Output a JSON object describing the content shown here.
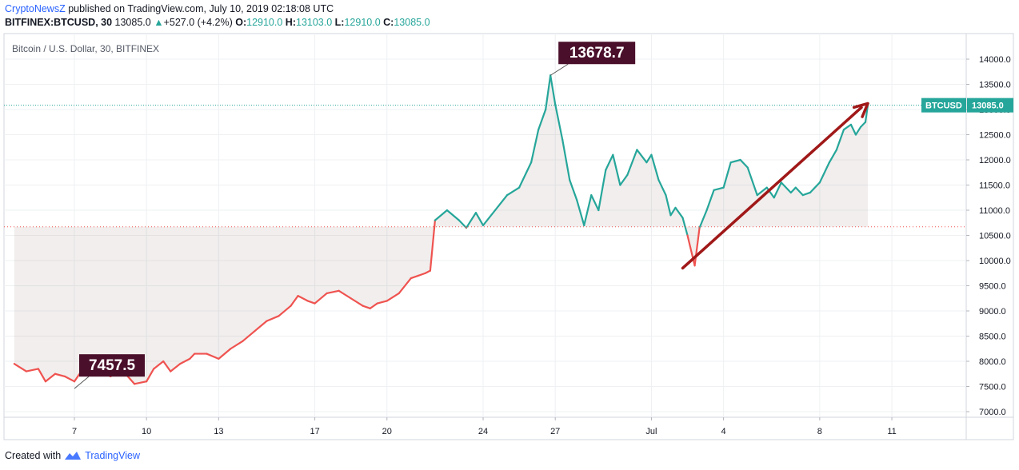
{
  "header": {
    "publisher": "CryptoNewsZ",
    "published_text": " published on TradingView.com, July 10, 2019 02:18:08 UTC",
    "symbol": "BITFINEX:BTCUSD, 30",
    "last": "13085.0",
    "change_arrow": "▲",
    "change": "+527.0 (+4.2%)",
    "o_label": "O:",
    "o_value": "12910.0",
    "h_label": "H:",
    "h_value": "13103.0",
    "l_label": "L:",
    "l_value": "12910.0",
    "c_label": "C:",
    "c_value": "13085.0"
  },
  "footer": {
    "created_with": "Created with",
    "brand": "TradingView"
  },
  "colors": {
    "up": "#26a69a",
    "down": "#ef5350",
    "annotation_bg": "#4a0f2a",
    "arrow": "#a01818",
    "grid": "#eef0f3"
  },
  "chart_data": {
    "type": "line",
    "title": "Bitcoin / U.S. Dollar, 30, BITFINEX",
    "price_tag_label": "BTCUSD",
    "price_tag_value": "13085.0",
    "ylim": [
      6850,
      14500
    ],
    "y_ticks": [
      "7000.0",
      "7500.0",
      "8000.0",
      "8500.0",
      "9000.0",
      "9500.0",
      "10000.0",
      "10500.0",
      "11000.0",
      "11500.0",
      "12000.0",
      "12500.0",
      "13000.0",
      "13500.0",
      "14000.0"
    ],
    "y_tick_values": [
      7000,
      7500,
      8000,
      8500,
      9000,
      9500,
      10000,
      10500,
      11000,
      11500,
      12000,
      12500,
      13000,
      13500,
      14000
    ],
    "x_tick_labels": [
      "7",
      "10",
      "13",
      "17",
      "20",
      "24",
      "27",
      "Jul",
      "4",
      "8",
      "11"
    ],
    "x_tick_days": [
      7,
      10,
      13,
      17,
      20,
      24,
      27,
      31,
      34,
      38,
      41
    ],
    "x_range_days": [
      4.4,
      44.3
    ],
    "reference_price": 10670,
    "last_price": 13085.0,
    "series": [
      {
        "x": [
          4.5,
          5.0,
          5.5,
          5.8,
          6.2,
          6.6,
          7.0,
          7.5,
          8.0,
          8.5,
          9.0,
          9.5,
          10.0,
          10.3,
          10.7,
          11.0,
          11.4,
          11.8,
          12.0,
          12.5,
          13.0,
          13.5,
          14.0,
          14.5,
          15.0,
          15.5,
          16.0,
          16.3,
          16.7,
          17.0,
          17.5,
          18.0,
          18.5,
          19.0,
          19.3,
          19.6,
          20.0,
          20.5,
          21.0,
          21.3,
          21.6,
          21.8,
          22.0,
          22.5,
          23.0,
          23.3,
          23.7,
          24.0,
          24.5,
          25.0,
          25.5,
          26.0,
          26.3,
          26.6,
          26.8,
          27.0,
          27.3,
          27.6,
          27.9,
          28.2,
          28.5,
          28.8,
          29.1,
          29.4,
          29.7,
          30.0,
          30.4,
          30.8,
          31.0,
          31.3,
          31.6,
          31.8,
          32.0,
          32.3,
          32.5,
          32.8,
          33.0,
          33.3,
          33.6,
          34.0,
          34.3,
          34.7,
          35.0,
          35.4,
          35.8,
          36.1,
          36.4,
          36.8,
          37.0,
          37.3,
          37.6,
          38.0,
          38.4,
          38.7,
          39.0,
          39.3,
          39.5,
          39.7,
          39.9,
          40.0
        ],
        "y": [
          7950,
          7800,
          7850,
          7600,
          7750,
          7700,
          7600,
          7950,
          7850,
          7700,
          7820,
          7550,
          7600,
          7850,
          8000,
          7800,
          7950,
          8050,
          8150,
          8150,
          8050,
          8250,
          8400,
          8600,
          8800,
          8900,
          9100,
          9300,
          9200,
          9150,
          9350,
          9400,
          9250,
          9100,
          9050,
          9150,
          9200,
          9350,
          9650,
          9700,
          9750,
          9800,
          10800,
          11000,
          10800,
          10650,
          10950,
          10700,
          11000,
          11300,
          11450,
          11950,
          12600,
          13000,
          13678.7,
          13100,
          12400,
          11600,
          11200,
          10700,
          11300,
          11000,
          11800,
          12100,
          11500,
          11700,
          12200,
          11950,
          12100,
          11600,
          11300,
          10900,
          11050,
          10850,
          10500,
          9900,
          10650,
          11000,
          11400,
          11450,
          11950,
          12000,
          11850,
          11300,
          11450,
          11250,
          11550,
          11350,
          11450,
          11300,
          11350,
          11550,
          11950,
          12200,
          12600,
          12700,
          12500,
          12650,
          12750,
          13085
        ]
      }
    ],
    "annotations": [
      {
        "label": "13678.7",
        "x": 26.8,
        "y": 13678.7
      },
      {
        "label": "7457.5",
        "x": 7.0,
        "y": 7457.5
      }
    ],
    "trend_arrow": {
      "from": {
        "x": 32.3,
        "y": 9850
      },
      "to": {
        "x": 40.0,
        "y": 13120
      }
    }
  }
}
